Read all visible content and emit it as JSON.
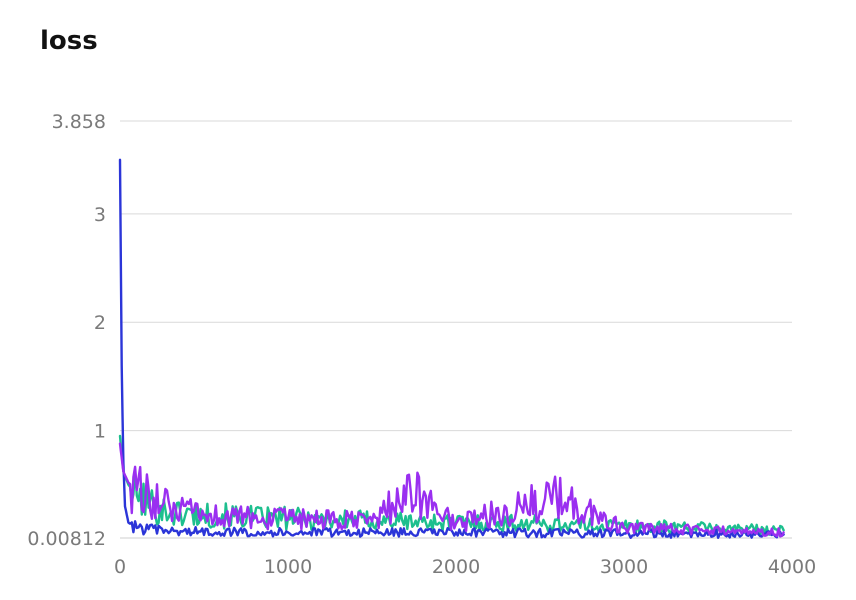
{
  "chart_data": {
    "type": "line",
    "title": "loss",
    "xlabel": "",
    "ylabel": "",
    "xlim": [
      0,
      4000
    ],
    "ylim": [
      0.00812,
      3.858
    ],
    "x_ticks": [
      0,
      1000,
      2000,
      3000,
      4000
    ],
    "x_tick_labels": [
      "0",
      "1000",
      "2000",
      "3000",
      "4000"
    ],
    "y_ticks": [
      0.00812,
      1,
      2,
      3,
      3.858
    ],
    "y_tick_labels": [
      "0.00812",
      "1",
      "2",
      "3",
      "3.858"
    ],
    "grid": true,
    "legend": "none",
    "series": [
      {
        "color": "#1dbf8e",
        "points": [
          [
            0,
            0.95
          ],
          [
            20,
            0.62
          ],
          [
            50,
            0.5
          ],
          [
            100,
            0.4
          ],
          [
            200,
            0.3
          ],
          [
            300,
            0.24
          ],
          [
            500,
            0.22
          ],
          [
            800,
            0.2
          ],
          [
            1000,
            0.19
          ],
          [
            1500,
            0.17
          ],
          [
            2000,
            0.15
          ],
          [
            2500,
            0.14
          ],
          [
            3000,
            0.12
          ],
          [
            3500,
            0.1
          ],
          [
            3950,
            0.08
          ]
        ]
      },
      {
        "color": "#2b35d8",
        "points": [
          [
            0,
            3.5
          ],
          [
            5,
            2.6
          ],
          [
            10,
            1.6
          ],
          [
            20,
            0.7
          ],
          [
            30,
            0.3
          ],
          [
            50,
            0.15
          ],
          [
            100,
            0.1
          ],
          [
            300,
            0.07
          ],
          [
            1000,
            0.06
          ],
          [
            2000,
            0.06
          ],
          [
            3000,
            0.05
          ],
          [
            3950,
            0.04
          ]
        ]
      },
      {
        "color": "#9a2ff0",
        "points": [
          [
            0,
            0.88
          ],
          [
            20,
            0.62
          ],
          [
            50,
            0.52
          ],
          [
            100,
            0.45
          ],
          [
            200,
            0.38
          ],
          [
            300,
            0.27
          ],
          [
            500,
            0.22
          ],
          [
            800,
            0.19
          ],
          [
            1000,
            0.18
          ],
          [
            1500,
            0.16
          ],
          [
            1730,
            0.45
          ],
          [
            2000,
            0.14
          ],
          [
            2600,
            0.38
          ],
          [
            3000,
            0.1
          ],
          [
            3500,
            0.08
          ],
          [
            3950,
            0.06
          ]
        ]
      }
    ]
  }
}
